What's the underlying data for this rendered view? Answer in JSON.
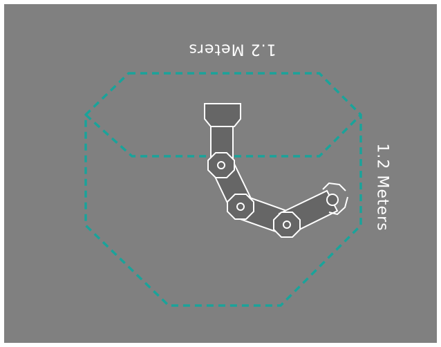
{
  "workspace": {
    "width_label": "1.2 Meters",
    "height_label": "1.2 Meters"
  },
  "colors": {
    "background": "#808080",
    "boundary": "#1aa39a",
    "arm_fill": "#666666",
    "arm_stroke": "#ffffff"
  },
  "icons": [
    "gripper-icon",
    "joint-icon"
  ]
}
